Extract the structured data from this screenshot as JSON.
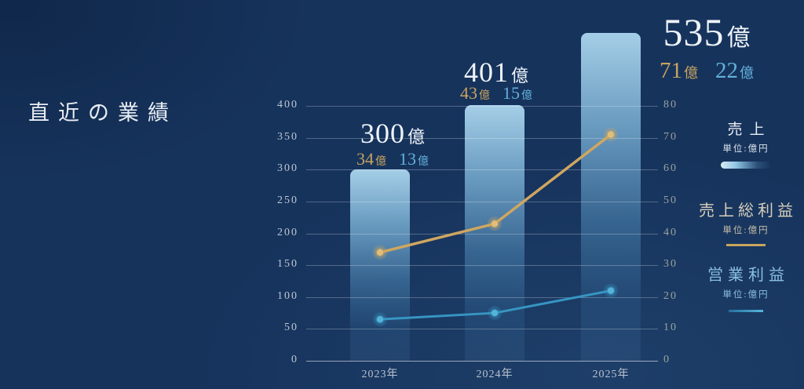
{
  "page": {
    "title": "直近の業績"
  },
  "chart_data": {
    "type": "bar+line",
    "categories": [
      "2023年",
      "2024年",
      "2025年"
    ],
    "series": [
      {
        "name": "売上",
        "type": "bar",
        "unit": "単位:億円",
        "axis": "left",
        "values": [
          300,
          401,
          535
        ]
      },
      {
        "name": "売上総利益",
        "type": "line",
        "unit": "単位:億円",
        "axis": "right",
        "values": [
          34,
          43,
          71
        ],
        "color": "#cfa660"
      },
      {
        "name": "営業利益",
        "type": "line",
        "unit": "単位:億円",
        "axis": "right",
        "values": [
          13,
          15,
          22
        ],
        "color": "#3795c2"
      }
    ],
    "left_axis": {
      "ticks": [
        0,
        50,
        100,
        150,
        200,
        250,
        300,
        350,
        400
      ],
      "range": [
        0,
        400
      ]
    },
    "right_axis": {
      "ticks": [
        0,
        10,
        20,
        30,
        40,
        50,
        60,
        70,
        80
      ],
      "range": [
        0,
        80
      ]
    },
    "grid": true,
    "legend_position": "right",
    "value_suffix": "億"
  },
  "legend": {
    "items": [
      {
        "label": "売上",
        "unit": "単位:億円",
        "swatch": "bar-gradient"
      },
      {
        "label": "売上総利益",
        "unit": "単位:億円",
        "swatch": "gold-line"
      },
      {
        "label": "営業利益",
        "unit": "単位:億円",
        "swatch": "blue-line"
      }
    ]
  },
  "colors": {
    "background": "#16335c",
    "bar_top": "#abd5ed",
    "gold": "#c9a35f",
    "light_blue": "#64b1da",
    "white": "#eef3f8"
  }
}
